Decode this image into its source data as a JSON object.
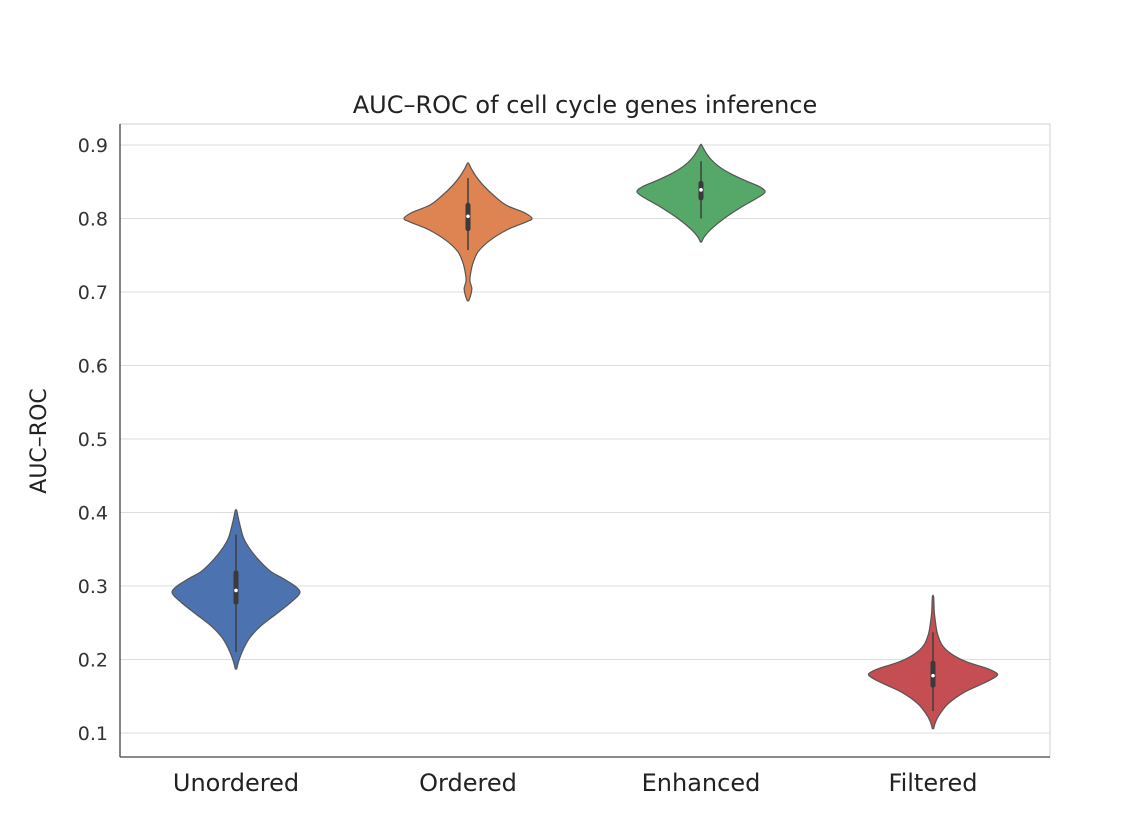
{
  "chart_data": {
    "type": "violin",
    "title": "AUC–ROC of cell cycle genes inference",
    "xlabel": "",
    "ylabel": "AUC–ROC",
    "ylim": [
      0.08,
      0.93
    ],
    "yticks": [
      "0.1",
      "0.2",
      "0.3",
      "0.4",
      "0.5",
      "0.6",
      "0.7",
      "0.8",
      "0.9"
    ],
    "ytick_values": [
      0.1,
      0.2,
      0.3,
      0.4,
      0.5,
      0.6,
      0.7,
      0.8,
      0.9
    ],
    "grid": true,
    "categories": [
      "Unordered",
      "Ordered",
      "Enhanced",
      "Filtered"
    ],
    "series": [
      {
        "name": "Unordered",
        "color": "#4c72b0",
        "min": 0.187,
        "max": 0.403,
        "median": 0.294,
        "q1": 0.278,
        "q3": 0.318,
        "whisker_low": 0.21,
        "whisker_high": 0.37,
        "density": [
          [
            0.187,
            0.01
          ],
          [
            0.2,
            0.05
          ],
          [
            0.215,
            0.12
          ],
          [
            0.23,
            0.22
          ],
          [
            0.245,
            0.38
          ],
          [
            0.26,
            0.6
          ],
          [
            0.275,
            0.82
          ],
          [
            0.285,
            0.95
          ],
          [
            0.292,
            1.0
          ],
          [
            0.3,
            0.92
          ],
          [
            0.31,
            0.74
          ],
          [
            0.32,
            0.54
          ],
          [
            0.335,
            0.36
          ],
          [
            0.35,
            0.22
          ],
          [
            0.365,
            0.12
          ],
          [
            0.38,
            0.07
          ],
          [
            0.395,
            0.03
          ],
          [
            0.403,
            0.01
          ]
        ]
      },
      {
        "name": "Ordered",
        "color": "#dd8452",
        "min": 0.688,
        "max": 0.875,
        "median": 0.803,
        "q1": 0.786,
        "q3": 0.818,
        "whisker_low": 0.757,
        "whisker_high": 0.855,
        "density": [
          [
            0.688,
            0.01
          ],
          [
            0.695,
            0.04
          ],
          [
            0.705,
            0.06
          ],
          [
            0.715,
            0.03
          ],
          [
            0.725,
            0.04
          ],
          [
            0.74,
            0.08
          ],
          [
            0.755,
            0.16
          ],
          [
            0.77,
            0.34
          ],
          [
            0.785,
            0.62
          ],
          [
            0.795,
            0.9
          ],
          [
            0.8,
            1.0
          ],
          [
            0.808,
            0.88
          ],
          [
            0.818,
            0.6
          ],
          [
            0.83,
            0.42
          ],
          [
            0.845,
            0.24
          ],
          [
            0.858,
            0.12
          ],
          [
            0.868,
            0.05
          ],
          [
            0.875,
            0.01
          ]
        ]
      },
      {
        "name": "Enhanced",
        "color": "#55a868",
        "min": 0.768,
        "max": 0.9,
        "median": 0.839,
        "q1": 0.828,
        "q3": 0.848,
        "whisker_low": 0.8,
        "whisker_high": 0.878,
        "density": [
          [
            0.768,
            0.01
          ],
          [
            0.775,
            0.05
          ],
          [
            0.785,
            0.15
          ],
          [
            0.8,
            0.36
          ],
          [
            0.815,
            0.62
          ],
          [
            0.828,
            0.88
          ],
          [
            0.836,
            1.0
          ],
          [
            0.843,
            0.92
          ],
          [
            0.852,
            0.68
          ],
          [
            0.862,
            0.44
          ],
          [
            0.872,
            0.26
          ],
          [
            0.882,
            0.14
          ],
          [
            0.892,
            0.06
          ],
          [
            0.9,
            0.01
          ]
        ]
      },
      {
        "name": "Filtered",
        "color": "#c44e52",
        "min": 0.106,
        "max": 0.285,
        "median": 0.178,
        "q1": 0.165,
        "q3": 0.195,
        "whisker_low": 0.13,
        "whisker_high": 0.237,
        "density": [
          [
            0.106,
            0.01
          ],
          [
            0.115,
            0.04
          ],
          [
            0.125,
            0.1
          ],
          [
            0.14,
            0.24
          ],
          [
            0.155,
            0.48
          ],
          [
            0.168,
            0.8
          ],
          [
            0.176,
            0.97
          ],
          [
            0.181,
            1.0
          ],
          [
            0.188,
            0.84
          ],
          [
            0.197,
            0.52
          ],
          [
            0.208,
            0.28
          ],
          [
            0.22,
            0.14
          ],
          [
            0.235,
            0.07
          ],
          [
            0.25,
            0.04
          ],
          [
            0.265,
            0.02
          ],
          [
            0.285,
            0.01
          ]
        ]
      }
    ]
  }
}
